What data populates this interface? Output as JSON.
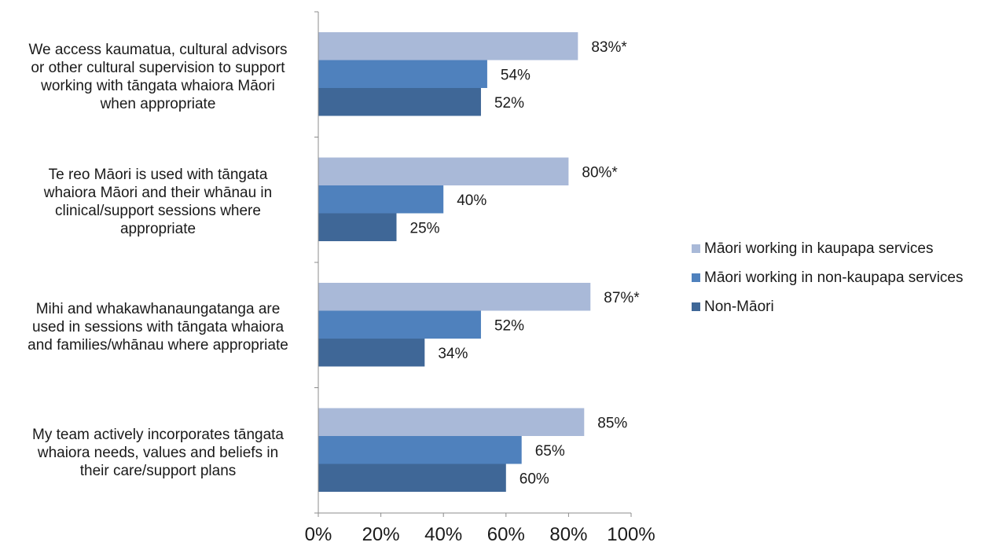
{
  "chart_data": {
    "type": "bar",
    "orientation": "horizontal",
    "categories": [
      "We access kaumatua, cultural advisors or other cultural supervision to support working with tāngata whaiora Māori when appropriate",
      "Te reo Māori is used with tāngata whaiora Māori and their whānau in clinical/support sessions where appropriate",
      "Mihi and whakawhanaungatanga are used in sessions with tāngata whaiora and families/whānau where appropriate",
      "My team actively incorporates tāngata whaiora needs, values and beliefs in their care/support plans"
    ],
    "category_lines": [
      [
        "We access kaumatua, cultural advisors",
        "or other cultural supervision to support",
        "working with tāngata whaiora Māori",
        "when appropriate"
      ],
      [
        "Te reo Māori is used with tāngata",
        "whaiora Māori and their whānau in",
        "clinical/support sessions where",
        "appropriate"
      ],
      [
        "Mihi and whakawhanaungatanga are",
        "used in sessions with tāngata whaiora",
        "and families/whānau where appropriate"
      ],
      [
        "My team actively incorporates tāngata",
        "whaiora needs, values and beliefs in",
        "their care/support plans"
      ]
    ],
    "series": [
      {
        "name": "Māori working in kaupapa services",
        "color": "#a9b9d8",
        "values": [
          83,
          80,
          87,
          85
        ],
        "labels": [
          "83%*",
          "80%*",
          "87%*",
          "85%"
        ]
      },
      {
        "name": "Māori working in non-kaupapa services",
        "color": "#4f81bd",
        "values": [
          54,
          40,
          52,
          65
        ],
        "labels": [
          "54%",
          "40%",
          "52%",
          "65%"
        ]
      },
      {
        "name": "Non-Māori",
        "color": "#3f6797",
        "values": [
          52,
          25,
          34,
          60
        ],
        "labels": [
          "52%",
          "25%",
          "34%",
          "60%"
        ]
      }
    ],
    "xlim": [
      0,
      100
    ],
    "xticks": [
      "0%",
      "20%",
      "40%",
      "60%",
      "80%",
      "100%"
    ],
    "legend_position": "right",
    "grid": false
  }
}
